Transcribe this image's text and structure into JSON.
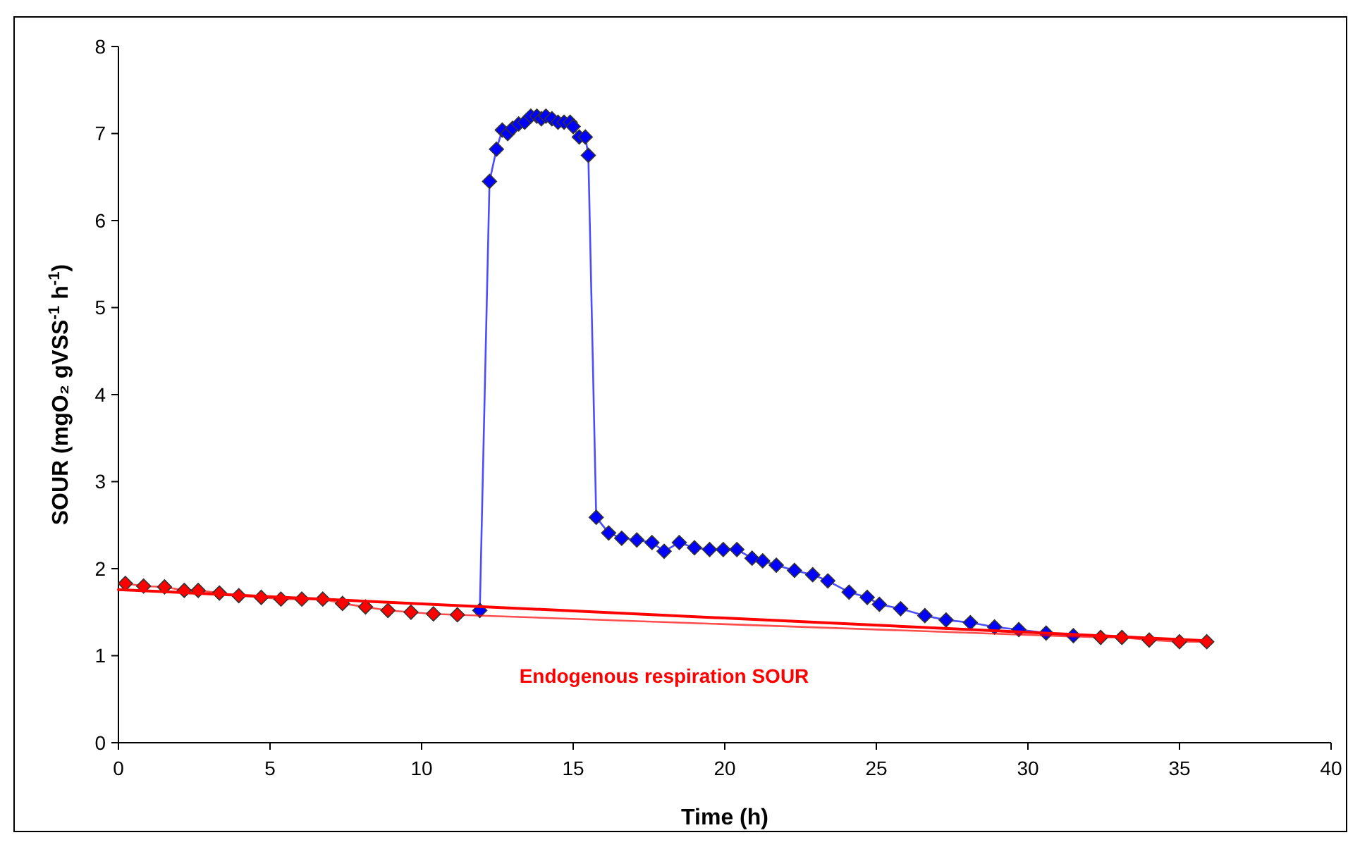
{
  "chart_data": {
    "type": "line",
    "xlabel": "Time  (h)",
    "ylabel": "SOUR  (mgO₂ gVSS$^{-1}$ h$^{-1}$)",
    "xlim": [
      0,
      40
    ],
    "xticks": [
      0,
      5,
      10,
      15,
      20,
      25,
      30,
      35,
      40
    ],
    "ylim": [
      0,
      8
    ],
    "yticks": [
      0,
      1,
      2,
      3,
      4,
      5,
      6,
      7,
      8
    ],
    "grid": false,
    "marker": "diamond",
    "line_style": "solid",
    "series": [
      {
        "color": "#0000ff",
        "x": [
          11.92,
          12.24,
          12.47,
          12.66,
          12.84,
          13.0,
          13.2,
          13.4,
          13.6,
          13.8,
          13.95,
          14.1,
          14.3,
          14.5,
          14.7,
          14.9,
          15.0,
          15.2,
          15.4,
          15.5,
          15.76,
          16.17,
          16.6,
          17.1,
          17.6,
          18.0,
          18.5,
          19.0,
          19.5,
          19.95,
          20.4,
          20.9,
          21.25,
          21.7,
          22.3,
          22.9,
          23.4,
          24.1,
          24.7,
          25.1,
          25.8,
          26.6,
          27.3,
          28.1,
          28.9,
          29.7,
          30.6,
          31.5
        ],
        "values": [
          1.52,
          6.45,
          6.82,
          7.04,
          7.0,
          7.06,
          7.11,
          7.13,
          7.2,
          7.2,
          7.17,
          7.2,
          7.17,
          7.13,
          7.13,
          7.13,
          7.08,
          6.96,
          6.96,
          6.75,
          2.59,
          2.41,
          2.35,
          2.33,
          2.3,
          2.2,
          2.3,
          2.24,
          2.22,
          2.22,
          2.22,
          2.12,
          2.09,
          2.04,
          1.98,
          1.93,
          1.86,
          1.73,
          1.67,
          1.59,
          1.54,
          1.46,
          1.41,
          1.38,
          1.33,
          1.3,
          1.26,
          1.23
        ]
      },
      {
        "color": "#ff0000",
        "x": [
          0.23,
          0.83,
          1.52,
          2.17,
          2.63,
          3.33,
          3.97,
          4.71,
          5.36,
          6.05,
          6.74,
          7.39,
          8.15,
          8.89,
          9.65,
          10.39,
          11.18,
          32.4,
          33.1,
          34.0,
          35.0,
          35.9
        ],
        "values": [
          1.83,
          1.8,
          1.79,
          1.75,
          1.75,
          1.72,
          1.69,
          1.67,
          1.65,
          1.65,
          1.65,
          1.6,
          1.56,
          1.52,
          1.5,
          1.48,
          1.47,
          1.21,
          1.21,
          1.18,
          1.16,
          1.16
        ]
      },
      {
        "type": "line",
        "name": "Endogenous respiration SOUR",
        "color": "#ff0000",
        "marker": "none",
        "x": [
          0,
          36
        ],
        "values": [
          1.76,
          1.17
        ]
      }
    ]
  }
}
